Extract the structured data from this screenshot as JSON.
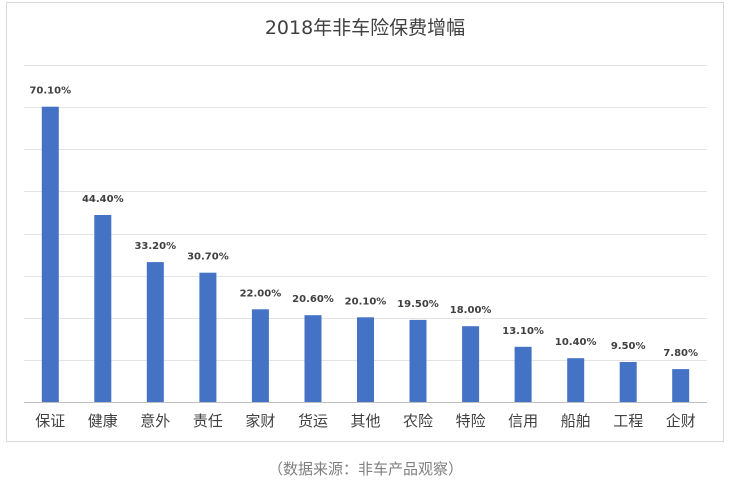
{
  "chart_data": {
    "type": "bar",
    "title": "2018年非车险保费增幅",
    "categories": [
      "保证",
      "健康",
      "意外",
      "责任",
      "家财",
      "货运",
      "其他",
      "农险",
      "特险",
      "信用",
      "船舶",
      "工程",
      "企财"
    ],
    "values": [
      70.1,
      44.4,
      33.2,
      30.7,
      22.0,
      20.6,
      20.1,
      19.5,
      18.0,
      13.1,
      10.4,
      9.5,
      7.8
    ],
    "value_labels": [
      "70.10%",
      "44.40%",
      "33.20%",
      "30.70%",
      "22.00%",
      "20.60%",
      "20.10%",
      "19.50%",
      "18.00%",
      "13.10%",
      "10.40%",
      "9.50%",
      "7.80%"
    ],
    "xlabel": "",
    "ylabel": "",
    "ylim": [
      0,
      80
    ],
    "grid": true,
    "legend": "none",
    "bar_color": "#4472C4"
  },
  "source_note": "（数据来源：非车产品观察）"
}
